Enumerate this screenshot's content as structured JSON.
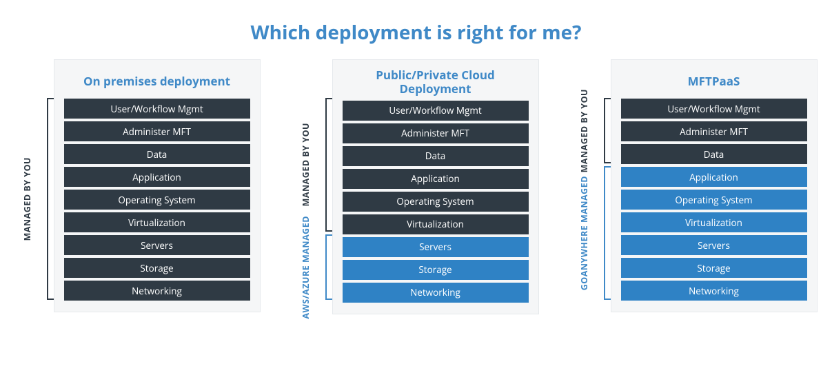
{
  "title": "Which deployment is right for me?",
  "colors": {
    "title": "#3f89c7",
    "cardBg": "#f5f6f7",
    "cardBorder": "#e6e9ec",
    "dark": "#2f3a44",
    "blue": "#2f82c5",
    "bracketDark": "#2f3a44",
    "bracketBlue": "#3f89c7",
    "textWhite": "#ffffff"
  },
  "layout": {
    "layerHeight": 29,
    "layerGap": 4,
    "headerHeight": 56
  },
  "layerLabels": [
    "User/Workflow Mgmt",
    "Administer MFT",
    "Data",
    "Application",
    "Operating System",
    "Virtualization",
    "Servers",
    "Storage",
    "Networking"
  ],
  "columns": [
    {
      "title": "On premises deployment",
      "layerColors": [
        "dark",
        "dark",
        "dark",
        "dark",
        "dark",
        "dark",
        "dark",
        "dark",
        "dark"
      ],
      "brackets": [
        {
          "label": "MANAGED BY YOU",
          "start": 0,
          "end": 9,
          "color": "bracketDark"
        }
      ]
    },
    {
      "title": "Public/Private Cloud Deployment",
      "layerColors": [
        "dark",
        "dark",
        "dark",
        "dark",
        "dark",
        "dark",
        "blue",
        "blue",
        "blue"
      ],
      "brackets": [
        {
          "label": "MANAGED BY YOU",
          "start": 0,
          "end": 6,
          "color": "bracketDark"
        },
        {
          "label": "AWS/AZURE MANAGED",
          "start": 6,
          "end": 9,
          "color": "bracketBlue"
        }
      ]
    },
    {
      "title": "MFTPaaS",
      "layerColors": [
        "dark",
        "dark",
        "dark",
        "blue",
        "blue",
        "blue",
        "blue",
        "blue",
        "blue"
      ],
      "brackets": [
        {
          "label": "MANAGED BY YOU",
          "start": 0,
          "end": 3,
          "color": "bracketDark"
        },
        {
          "label": "GOANYWHERE MANAGED",
          "start": 3,
          "end": 9,
          "color": "bracketBlue"
        }
      ]
    }
  ]
}
